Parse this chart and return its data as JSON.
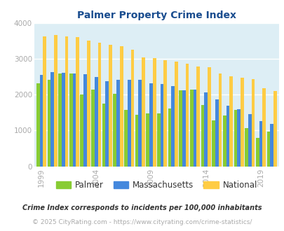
{
  "title": "Palmer Property Crime Index",
  "title_color": "#1a4d8f",
  "years": [
    1999,
    2000,
    2001,
    2002,
    2003,
    2004,
    2005,
    2006,
    2007,
    2008,
    2009,
    2010,
    2011,
    2012,
    2013,
    2014,
    2015,
    2016,
    2017,
    2018,
    2019,
    2020
  ],
  "palmer": [
    2320,
    2420,
    2600,
    2590,
    2000,
    2150,
    1760,
    2020,
    1580,
    1430,
    1470,
    1480,
    1610,
    2120,
    2150,
    1720,
    1290,
    1420,
    1580,
    1060,
    800,
    960
  ],
  "massachusetts": [
    2560,
    2630,
    2610,
    2590,
    2580,
    2500,
    2380,
    2410,
    2420,
    2410,
    2320,
    2290,
    2240,
    2130,
    2150,
    2060,
    1860,
    1700,
    1600,
    1450,
    1270,
    1190
  ],
  "national": [
    3620,
    3670,
    3630,
    3600,
    3520,
    3460,
    3390,
    3360,
    3250,
    3050,
    3030,
    2970,
    2920,
    2860,
    2790,
    2760,
    2600,
    2510,
    2470,
    2440,
    2190,
    2100
  ],
  "palmer_color": "#88cc33",
  "mass_color": "#4488dd",
  "national_color": "#ffcc44",
  "bg_color": "#ddeef5",
  "ylim": [
    0,
    4000
  ],
  "xlabel_ticks": [
    1999,
    2004,
    2009,
    2014,
    2019
  ],
  "legend_labels": [
    "Palmer",
    "Massachusetts",
    "National"
  ],
  "footnote1": "Crime Index corresponds to incidents per 100,000 inhabitants",
  "footnote2": "© 2025 CityRating.com - https://www.cityrating.com/crime-statistics/",
  "footnote1_color": "#333333",
  "footnote2_color": "#aaaaaa",
  "tick_color": "#aaaaaa"
}
